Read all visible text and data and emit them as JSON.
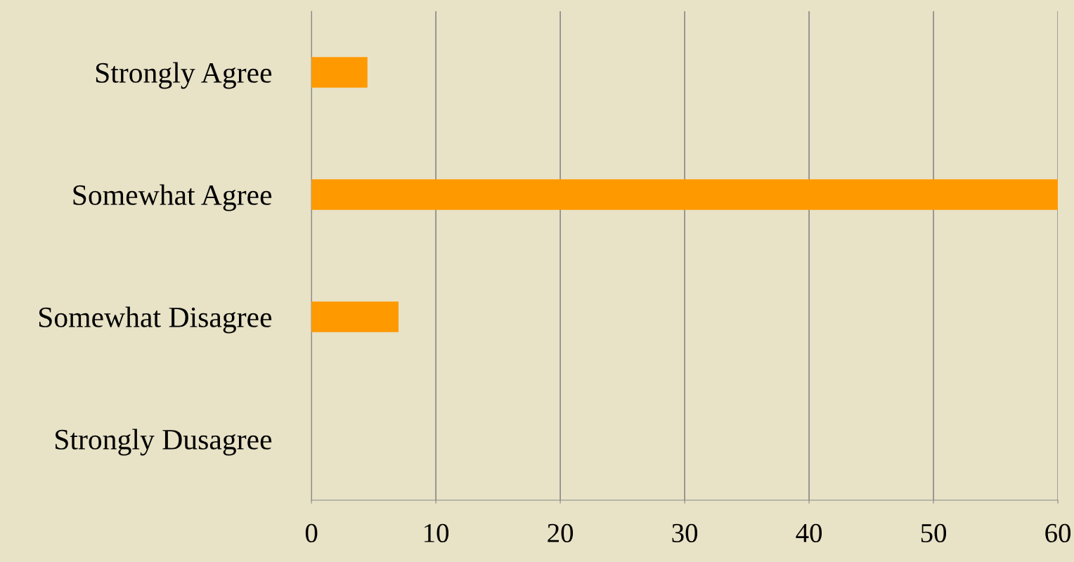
{
  "chart_data": {
    "type": "bar",
    "orientation": "horizontal",
    "categories": [
      "Strongly Agree",
      "Somewhat Agree",
      "Somewhat Disagree",
      "Strongly Dusagree"
    ],
    "values": [
      4.5,
      60,
      7,
      0
    ],
    "color": "#ff9900",
    "xlim": [
      0,
      60
    ],
    "xticks": [
      0,
      10,
      20,
      30,
      40,
      50,
      60
    ],
    "grid": "x"
  }
}
